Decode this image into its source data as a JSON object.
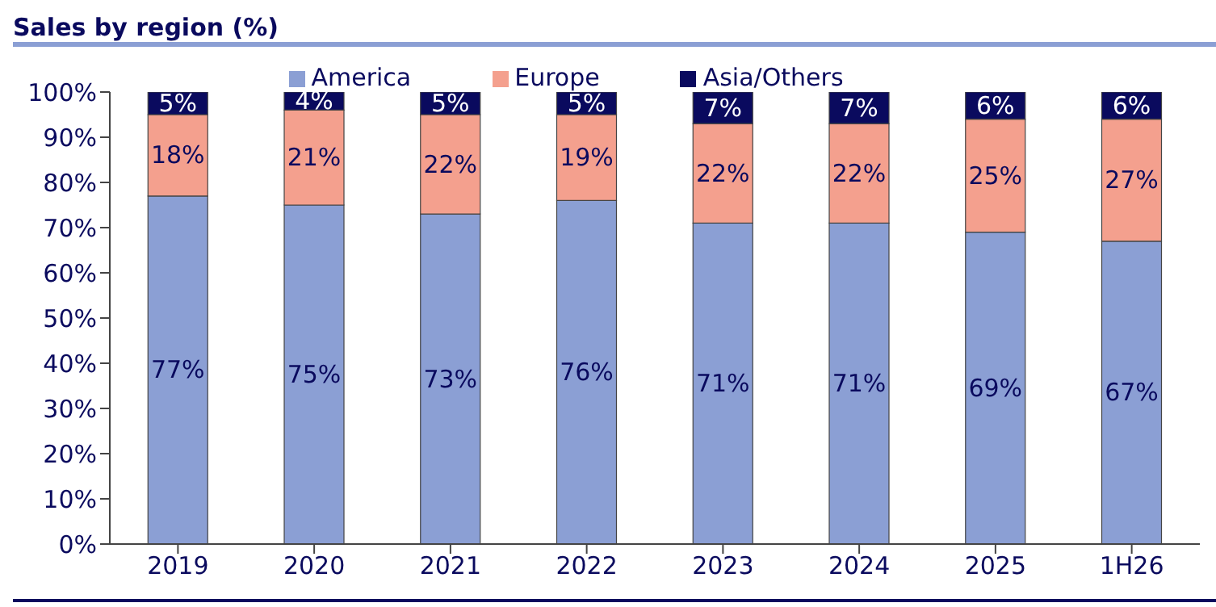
{
  "chart_data": {
    "type": "bar",
    "title": "Sales by region (%)",
    "stacked": true,
    "legend": "top",
    "grid": false,
    "categories": [
      "2019",
      "2020",
      "2021",
      "2022",
      "2023",
      "2024",
      "2025",
      "1H26"
    ],
    "series": [
      {
        "name": "America",
        "color": "#8b9fd4",
        "values": [
          77,
          75,
          73,
          76,
          71,
          71,
          69,
          67
        ],
        "value_labels": [
          "77%",
          "75%",
          "73%",
          "76%",
          "71%",
          "71%",
          "69%",
          "67%"
        ]
      },
      {
        "name": "Europe",
        "color": "#f4a08e",
        "values": [
          18,
          21,
          22,
          19,
          22,
          22,
          25,
          27
        ],
        "value_labels": [
          "18%",
          "21%",
          "22%",
          "19%",
          "22%",
          "22%",
          "25%",
          "27%"
        ]
      },
      {
        "name": "Asia/Others",
        "color": "#0a0a5e",
        "values": [
          5,
          4,
          5,
          5,
          7,
          7,
          6,
          6
        ],
        "value_labels": [
          "5%",
          "4%",
          "5%",
          "5%",
          "7%",
          "7%",
          "6%",
          "6%"
        ]
      }
    ],
    "ylim": [
      0,
      100
    ],
    "yticks": [
      {
        "value": 0,
        "label": "0%"
      },
      {
        "value": 10,
        "label": "10%"
      },
      {
        "value": 20,
        "label": "20%"
      },
      {
        "value": 30,
        "label": "30%"
      },
      {
        "value": 40,
        "label": "40%"
      },
      {
        "value": 50,
        "label": "50%"
      },
      {
        "value": 60,
        "label": "60%"
      },
      {
        "value": 70,
        "label": "70%"
      },
      {
        "value": 80,
        "label": "80%"
      },
      {
        "value": 90,
        "label": "90%"
      },
      {
        "value": 100,
        "label": "100%"
      }
    ]
  }
}
